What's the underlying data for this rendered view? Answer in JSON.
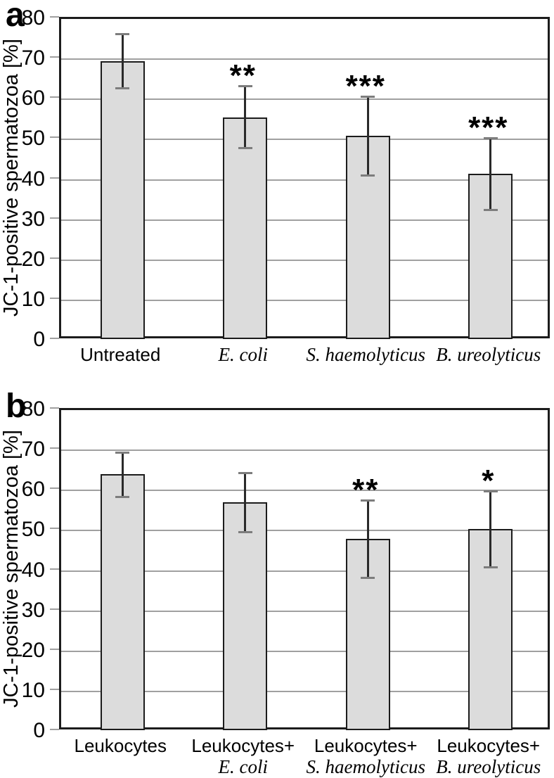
{
  "figure": {
    "background": "#ffffff",
    "bar_fill": "#dcdcdc",
    "bar_border": "#1c1c1c",
    "grid_color": "#a0a0a0",
    "axis_color": "#1c1c1c",
    "error_line_color": "#2a2a2a",
    "error_cap_color": "#7d7d7d"
  },
  "chart_data": [
    {
      "type": "bar",
      "panel_label": "a",
      "title": "",
      "xlabel": "",
      "ylabel": "JC-1-positive spermatozoa [%]",
      "ylim": [
        0,
        80
      ],
      "yticks": [
        0,
        10,
        20,
        30,
        40,
        50,
        60,
        70,
        80
      ],
      "grid": true,
      "legend": "none",
      "categories": [
        {
          "line1": "Untreated",
          "line1_italic": false,
          "line2": ""
        },
        {
          "line1": "E. coli",
          "line1_italic": true,
          "line2": ""
        },
        {
          "line1": "S. haemolyticus",
          "line1_italic": true,
          "line2": ""
        },
        {
          "line1": "B. ureolyticus",
          "line1_italic": true,
          "line2": ""
        }
      ],
      "values": [
        69.5,
        55.5,
        51.0,
        41.5
      ],
      "error_high": [
        76.3,
        63.4,
        60.7,
        50.5
      ],
      "error_low": [
        62.9,
        47.9,
        41.2,
        32.6
      ],
      "significance": [
        "",
        "**",
        "***",
        "***"
      ]
    },
    {
      "type": "bar",
      "panel_label": "b",
      "title": "",
      "xlabel": "",
      "ylabel": "JC-1-positive spermatozoa [%]",
      "ylim": [
        0,
        80
      ],
      "yticks": [
        0,
        10,
        20,
        30,
        40,
        50,
        60,
        70,
        80
      ],
      "grid": true,
      "legend": "none",
      "categories": [
        {
          "line1": "Leukocytes",
          "line1_italic": false,
          "line2": ""
        },
        {
          "line1": "Leukocytes+",
          "line1_italic": false,
          "line2": "E. coli"
        },
        {
          "line1": "Leukocytes+",
          "line1_italic": false,
          "line2": "S. haemolyticus"
        },
        {
          "line1": "Leukocytes+",
          "line1_italic": false,
          "line2": "B. ureolyticus"
        }
      ],
      "values": [
        64.0,
        57.0,
        48.0,
        50.5
      ],
      "error_high": [
        69.5,
        64.4,
        57.6,
        59.8
      ],
      "error_low": [
        58.5,
        49.8,
        38.4,
        41.0
      ],
      "significance": [
        "",
        "",
        "**",
        "*"
      ]
    }
  ]
}
